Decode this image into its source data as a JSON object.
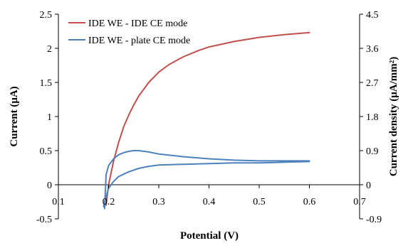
{
  "chart_data": {
    "type": "line",
    "xlabel": "Potential (V)",
    "ylabel": "Current (μA)",
    "y2label": "Current density (μA/mm²)",
    "xlim": [
      0.1,
      0.7
    ],
    "ylim": [
      -0.5,
      2.5
    ],
    "y2lim": [
      -0.9,
      4.5
    ],
    "x_ticks": [
      "0.1",
      "0.2",
      "0.3",
      "0.4",
      "0.5",
      "0.6",
      "0.7"
    ],
    "y_ticks": [
      "-0.5",
      "0",
      "0.5",
      "1",
      "1.5",
      "2",
      "2.5"
    ],
    "y2_ticks": [
      "-0.9",
      "0",
      "0.9",
      "1.8",
      "2.7",
      "3.6",
      "4.5"
    ],
    "grid": false,
    "legend_position": "top-left",
    "series": [
      {
        "name": "IDE WE - IDE CE mode",
        "color": "#c0504d",
        "x": [
          0.195,
          0.2,
          0.21,
          0.22,
          0.23,
          0.24,
          0.25,
          0.26,
          0.28,
          0.3,
          0.32,
          0.35,
          0.38,
          0.4,
          0.45,
          0.5,
          0.55,
          0.6
        ],
        "y": [
          -0.3,
          0.0,
          0.35,
          0.62,
          0.85,
          1.02,
          1.17,
          1.3,
          1.5,
          1.65,
          1.76,
          1.88,
          1.97,
          2.02,
          2.1,
          2.16,
          2.2,
          2.23
        ]
      },
      {
        "name": "IDE WE - plate CE mode",
        "color": "#4f81bd",
        "x": [
          0.192,
          0.195,
          0.2,
          0.21,
          0.22,
          0.23,
          0.24,
          0.25,
          0.26,
          0.28,
          0.3,
          0.35,
          0.4,
          0.45,
          0.5,
          0.55,
          0.6,
          0.6,
          0.55,
          0.5,
          0.45,
          0.4,
          0.35,
          0.3,
          0.28,
          0.26,
          0.24,
          0.22,
          0.21,
          0.2,
          0.195,
          0.19
        ],
        "y": [
          -0.35,
          0.15,
          0.28,
          0.38,
          0.44,
          0.47,
          0.49,
          0.5,
          0.5,
          0.48,
          0.45,
          0.41,
          0.38,
          0.36,
          0.35,
          0.35,
          0.35,
          0.34,
          0.33,
          0.32,
          0.32,
          0.31,
          0.3,
          0.29,
          0.27,
          0.24,
          0.19,
          0.12,
          0.05,
          -0.05,
          -0.18,
          -0.32
        ]
      }
    ]
  }
}
